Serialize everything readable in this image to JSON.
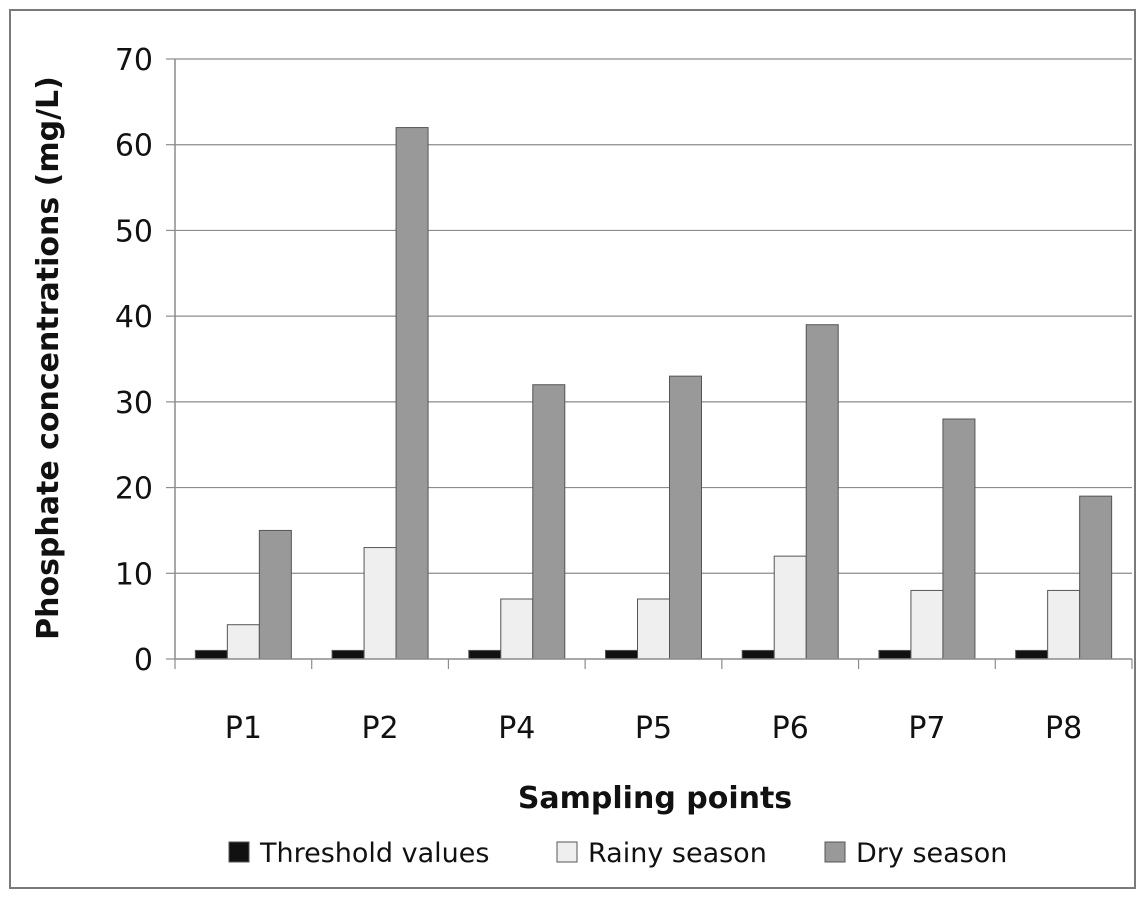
{
  "chart_data": {
    "type": "bar",
    "categories": [
      "P1",
      "P2",
      "P4",
      "P5",
      "P6",
      "P7",
      "P8"
    ],
    "series": [
      {
        "name": "Threshold values",
        "values": [
          1,
          1,
          1,
          1,
          1,
          1,
          1
        ],
        "color": "#111111"
      },
      {
        "name": "Rainy season",
        "values": [
          4,
          13,
          7,
          7,
          12,
          8,
          8
        ],
        "color": "#efefef"
      },
      {
        "name": "Dry season",
        "values": [
          15,
          62,
          32,
          33,
          39,
          28,
          19
        ],
        "color": "#999999"
      }
    ],
    "xlabel": "Sampling points",
    "ylabel": "Phosphate concentrations (mg/L)",
    "ylim": [
      0,
      70
    ],
    "yticks": [
      0,
      10,
      20,
      30,
      40,
      50,
      60,
      70
    ],
    "grid": true,
    "legend_position": "bottom"
  }
}
